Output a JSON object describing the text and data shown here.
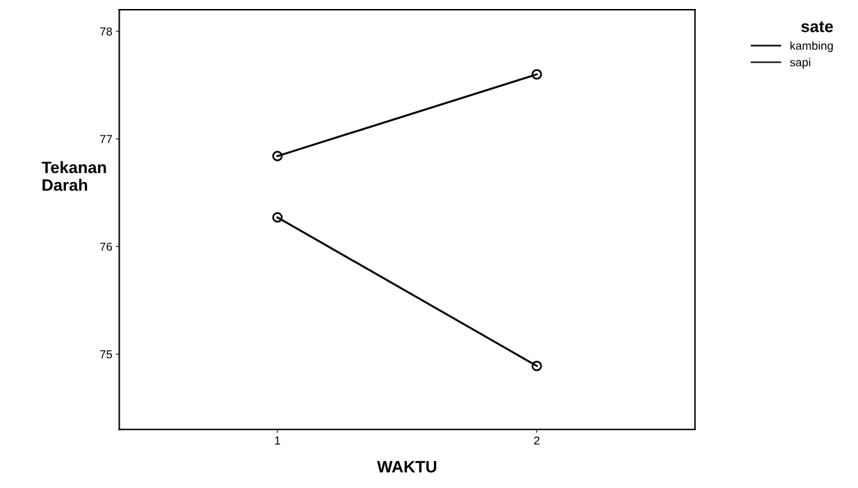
{
  "chart_data": {
    "type": "line",
    "xlabel": "WAKTU",
    "ylabel": "Tekanan\nDarah",
    "legend_title": "sate",
    "x": [
      1,
      2
    ],
    "series": [
      {
        "name": "kambing",
        "color": "#000000",
        "values": [
          76.84,
          77.6
        ]
      },
      {
        "name": "sapi",
        "color": "#000000",
        "values": [
          76.27,
          74.89
        ]
      }
    ],
    "xlim": [
      0.39,
      2.61
    ],
    "xticks": [
      1,
      2
    ],
    "ylim": [
      74.3,
      78.2
    ],
    "yticks": [
      75,
      76,
      77,
      78
    ],
    "marker": "circle",
    "line_style": "solid",
    "grid": false,
    "legend": "top right"
  }
}
